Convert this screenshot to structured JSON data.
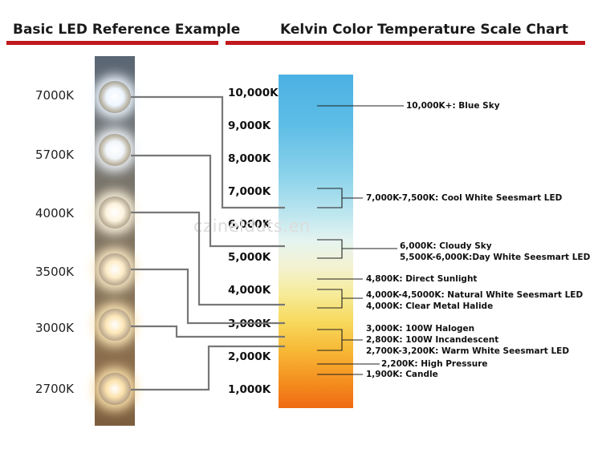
{
  "headers": {
    "left": "Basic LED Reference Example",
    "right": "Kelvin Color Temperature Scale Chart"
  },
  "colors": {
    "accent_rule": "#c0181c"
  },
  "leds": [
    {
      "label": "7000K",
      "color": "#eef6ff"
    },
    {
      "label": "5700K",
      "color": "#f2f6fb"
    },
    {
      "label": "4000K",
      "color": "#fdf4df"
    },
    {
      "label": "3500K",
      "color": "#fdecc8"
    },
    {
      "label": "3000K",
      "color": "#fde7b8"
    },
    {
      "label": "2700K",
      "color": "#fce2ac"
    }
  ],
  "scale_labels": [
    "10,000K",
    "9,000K",
    "8,000K",
    "7,000K",
    "6,000K",
    "5,000K",
    "4,000K",
    "3,000K",
    "2,000K",
    "1,000K"
  ],
  "descriptions": [
    "10,000K+: Blue Sky",
    "7,000K-7,500K: Cool White Seesmart LED",
    "6,000K: Cloudy Sky",
    "5,500K-6,000K:Day White Seesmart LED",
    "4,800K: Direct Sunlight",
    "4,000K-4,5000K: Natural White Seesmart LED",
    "4,000K: Clear Metal Halide",
    "3,000K: 100W Halogen",
    "2,800K: 100W Incandescent",
    "2,700K-3,200K: Warm White Seesmart LED",
    "2,200K: High Pressure",
    "1,900K: Candle"
  ],
  "watermark": "czinelduts.en"
}
